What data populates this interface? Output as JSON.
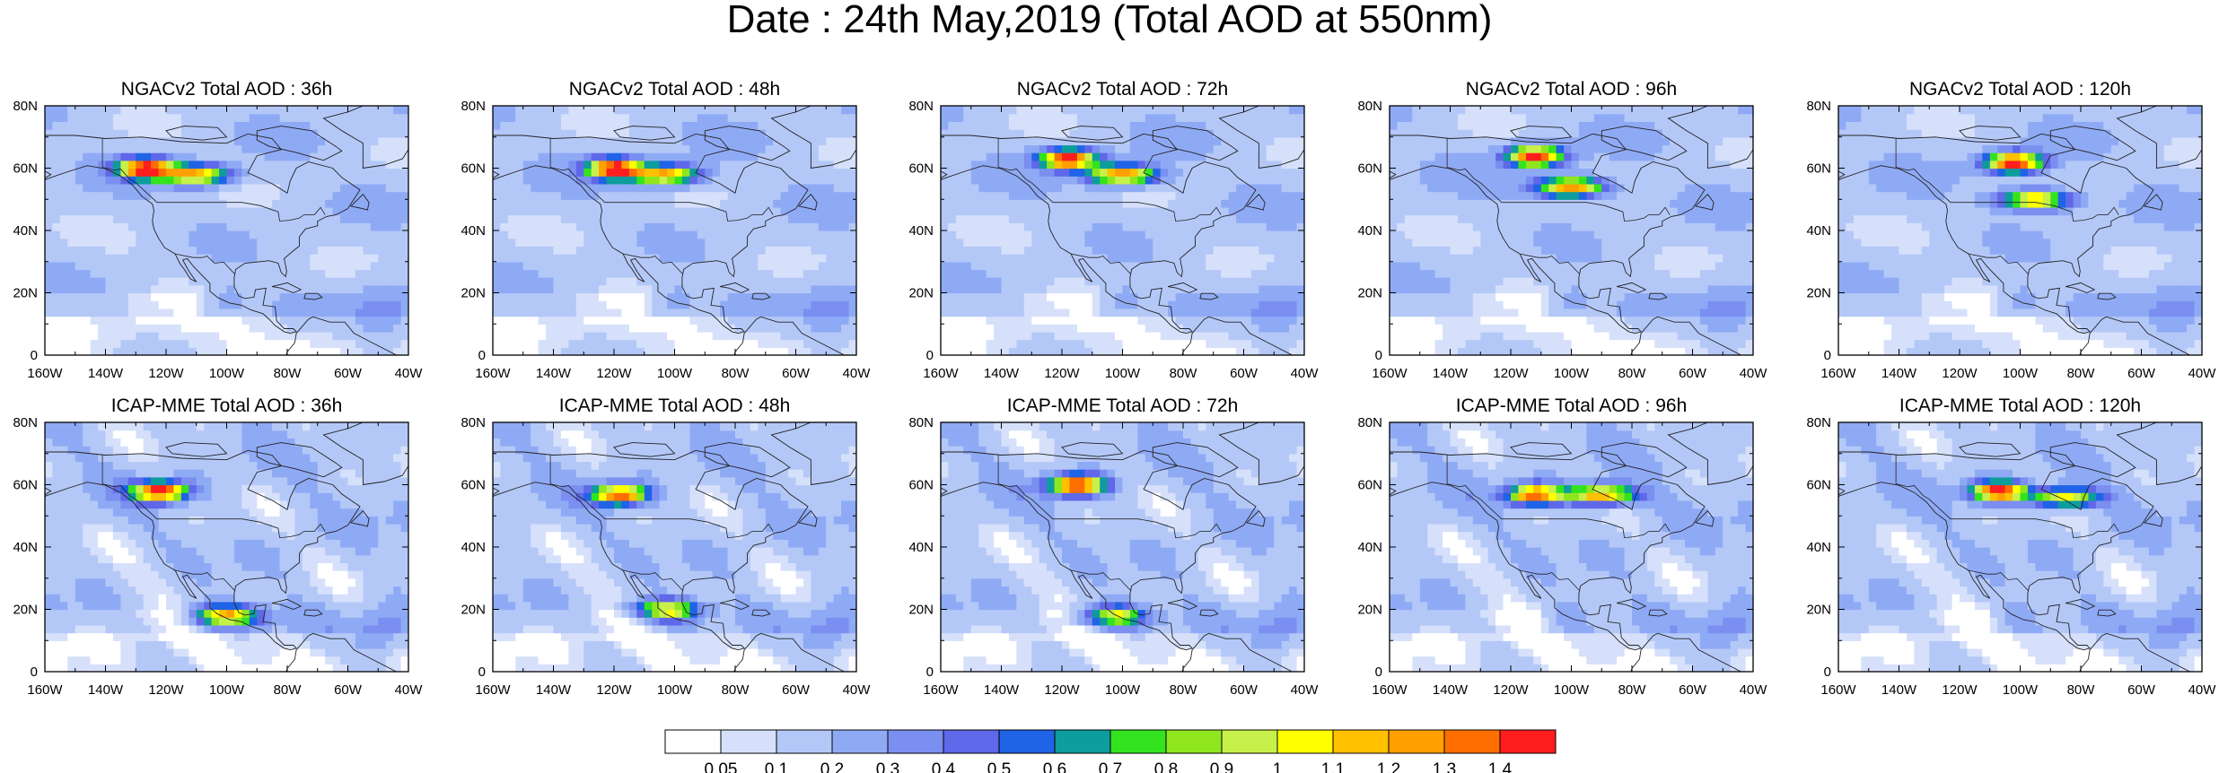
{
  "figure": {
    "title": "Date : 24th May,2019 (Total AOD at 550nm)"
  },
  "panels": [
    {
      "title": "NGACv2 Total AOD : 36h",
      "model": "NGACv2",
      "lead": "36h",
      "plumes": [
        {
          "lon": -127,
          "lat": 60,
          "intensity": 1.4
        },
        {
          "lon": -110,
          "lat": 58,
          "intensity": 1.1
        }
      ]
    },
    {
      "title": "NGACv2 Total AOD : 48h",
      "model": "NGACv2",
      "lead": "48h",
      "plumes": [
        {
          "lon": -120,
          "lat": 60,
          "intensity": 1.4
        },
        {
          "lon": -103,
          "lat": 58,
          "intensity": 1.1
        }
      ]
    },
    {
      "title": "NGACv2 Total AOD : 72h",
      "model": "NGACv2",
      "lead": "72h",
      "plumes": [
        {
          "lon": -118,
          "lat": 63,
          "intensity": 1.4
        },
        {
          "lon": -100,
          "lat": 58,
          "intensity": 1.2
        }
      ]
    },
    {
      "title": "NGACv2 Total AOD : 96h",
      "model": "NGACv2",
      "lead": "96h",
      "plumes": [
        {
          "lon": -112,
          "lat": 64,
          "intensity": 1.4
        },
        {
          "lon": -100,
          "lat": 54,
          "intensity": 1.2
        }
      ]
    },
    {
      "title": "NGACv2 Total AOD : 120h",
      "model": "NGACv2",
      "lead": "120h",
      "plumes": [
        {
          "lon": -102,
          "lat": 62,
          "intensity": 1.4
        },
        {
          "lon": -95,
          "lat": 50,
          "intensity": 1.1
        }
      ]
    },
    {
      "title": "ICAP-MME Total AOD : 36h",
      "model": "ICAP-MME",
      "lead": "36h",
      "plumes": [
        {
          "lon": -122,
          "lat": 58,
          "intensity": 1.4
        },
        {
          "lon": -100,
          "lat": 18,
          "intensity": 1.0
        }
      ]
    },
    {
      "title": "ICAP-MME Total AOD : 48h",
      "model": "ICAP-MME",
      "lead": "48h",
      "plumes": [
        {
          "lon": -118,
          "lat": 57,
          "intensity": 1.3
        },
        {
          "lon": -103,
          "lat": 20,
          "intensity": 0.9
        }
      ]
    },
    {
      "title": "ICAP-MME Total AOD : 72h",
      "model": "ICAP-MME",
      "lead": "72h",
      "plumes": [
        {
          "lon": -115,
          "lat": 60,
          "intensity": 1.4
        },
        {
          "lon": -103,
          "lat": 18,
          "intensity": 0.8
        }
      ]
    },
    {
      "title": "ICAP-MME Total AOD : 96h",
      "model": "ICAP-MME",
      "lead": "96h",
      "plumes": [
        {
          "lon": -112,
          "lat": 57,
          "intensity": 1.3
        },
        {
          "lon": -90,
          "lat": 57,
          "intensity": 1.2
        }
      ]
    },
    {
      "title": "ICAP-MME Total AOD : 120h",
      "model": "ICAP-MME",
      "lead": "120h",
      "plumes": [
        {
          "lon": -107,
          "lat": 58,
          "intensity": 1.4
        },
        {
          "lon": -85,
          "lat": 56,
          "intensity": 1.0
        }
      ]
    }
  ],
  "axes": {
    "lon_range": [
      -160,
      -40
    ],
    "lat_range": [
      0,
      80
    ],
    "lon_ticks": [
      "160W",
      "140W",
      "120W",
      "100W",
      "80W",
      "60W",
      "40W"
    ],
    "lat_ticks": [
      "0",
      "20N",
      "40N",
      "60N",
      "80N"
    ]
  },
  "colorbar": {
    "labels": [
      "0.05",
      "0.1",
      "0.2",
      "0.3",
      "0.4",
      "0.5",
      "0.6",
      "0.7",
      "0.8",
      "0.9",
      "1",
      "1.1",
      "1.2",
      "1.3",
      "1.4"
    ],
    "colors": [
      "#ffffff",
      "#d6e0fb",
      "#b4c8f8",
      "#8faaf5",
      "#7a8ff0",
      "#5f68e8",
      "#1f63e6",
      "#0e9c9c",
      "#33e31f",
      "#8fe61e",
      "#c8f04a",
      "#ffff00",
      "#ffc000",
      "#ff9f00",
      "#ff6e00",
      "#ff1e1e"
    ]
  }
}
